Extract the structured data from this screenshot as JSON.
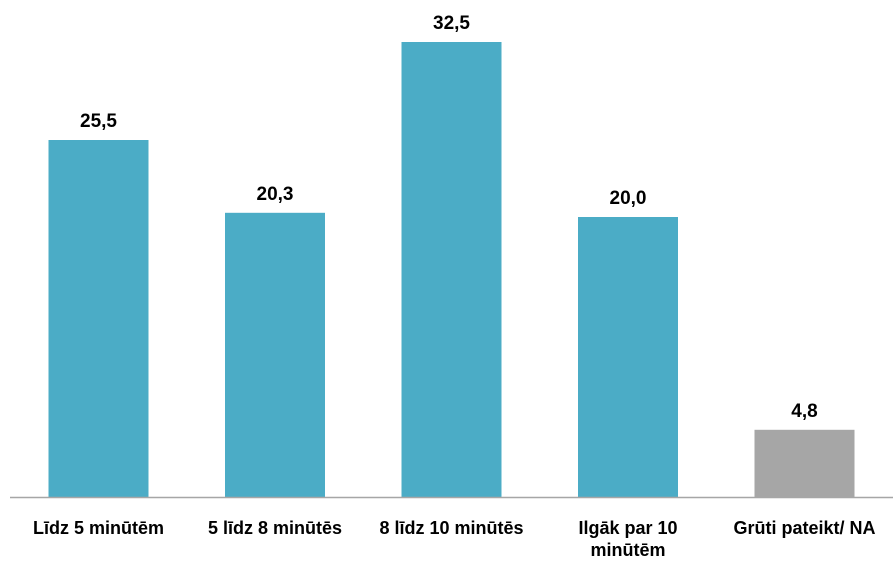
{
  "chart_data": {
    "type": "bar",
    "categories": [
      [
        "Līdz 5 minūtēm"
      ],
      [
        "5 līdz 8 minūtēs"
      ],
      [
        "8 līdz 10 minūtēs"
      ],
      [
        "Ilgāk par 10",
        "minūtēm"
      ],
      [
        "Grūti pateikt/ NA"
      ]
    ],
    "values": [
      25.5,
      20.3,
      32.5,
      20.0,
      4.8
    ],
    "value_labels": [
      "25,5",
      "20,3",
      "32,5",
      "20,0",
      "4,8"
    ],
    "colors": [
      "#4bacc6",
      "#4bacc6",
      "#4bacc6",
      "#4bacc6",
      "#a6a6a6"
    ],
    "axis_color": "#a6a6a6",
    "ylim": [
      0,
      35
    ],
    "grid": false,
    "legend": "none",
    "title": "",
    "xlabel": "",
    "ylabel": ""
  }
}
